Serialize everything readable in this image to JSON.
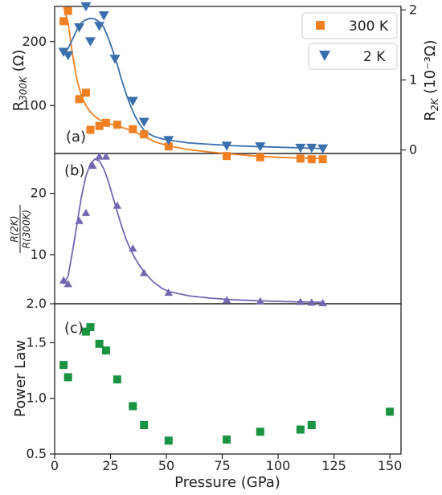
{
  "colors": {
    "orange": "#f08022",
    "blue": "#3a6fad",
    "purple": "#7367b0",
    "green": "#1a9343",
    "axis": "#222222"
  },
  "chart_data": [
    {
      "type": "scatter",
      "panel": "(a)",
      "xlim": [
        0,
        155
      ],
      "ylim_left": [
        25,
        255
      ],
      "ylim_right": [
        -0.05,
        2.05
      ],
      "yticks_left": [
        "100",
        "200"
      ],
      "yticks_right": [
        "0",
        "1",
        "2"
      ],
      "ylabel_left_main": "R",
      "ylabel_left_sub": "300K",
      "ylabel_left_unit": " (Ω)",
      "ylabel_right_main": "R",
      "ylabel_right_sub": "2K",
      "ylabel_right_unit": " (10⁻³Ω)",
      "legend_position": "top-right",
      "series": [
        {
          "name": "300 K",
          "axis": "left",
          "marker": "square",
          "x": [
            4,
            6,
            11,
            14,
            16,
            20,
            23,
            28,
            35,
            40,
            51,
            77,
            92,
            110,
            115,
            120
          ],
          "y": [
            232,
            248,
            110,
            120,
            62,
            68,
            73,
            70,
            63,
            55,
            36,
            21,
            19,
            17,
            16,
            16
          ],
          "fit_x": [
            4,
            6,
            8,
            10,
            12,
            14,
            16,
            18,
            20,
            22,
            24,
            27,
            30,
            35,
            40,
            45,
            51,
            60,
            70,
            80,
            90,
            100,
            110,
            120
          ],
          "fit_y": [
            255,
            230,
            180,
            140,
            115,
            100,
            90,
            83,
            78,
            75,
            72,
            69,
            66,
            60,
            52,
            43,
            37,
            31,
            27,
            24,
            21,
            19,
            18,
            17
          ]
        },
        {
          "name": "2 K",
          "axis": "right",
          "marker": "triangle-down",
          "x": [
            4,
            6,
            11,
            14,
            16,
            20,
            22,
            27,
            35,
            40,
            51,
            77,
            92,
            110,
            115,
            120
          ],
          "y": [
            1.4,
            1.35,
            1.75,
            2.05,
            1.55,
            1.77,
            1.92,
            1.3,
            0.7,
            0.4,
            0.14,
            0.06,
            0.05,
            0.03,
            0.03,
            0.02
          ],
          "fit_x": [
            4,
            6,
            8,
            10,
            12,
            14,
            16,
            18,
            20,
            22,
            24,
            26,
            28,
            30,
            32,
            34,
            36,
            38,
            40,
            44,
            48,
            51,
            60,
            70,
            80,
            90,
            100,
            110,
            120
          ],
          "fit_y": [
            1.4,
            1.45,
            1.58,
            1.72,
            1.82,
            1.86,
            1.88,
            1.87,
            1.83,
            1.75,
            1.6,
            1.42,
            1.22,
            1.0,
            0.8,
            0.63,
            0.48,
            0.37,
            0.28,
            0.2,
            0.16,
            0.14,
            0.1,
            0.08,
            0.06,
            0.05,
            0.04,
            0.03,
            0.02
          ]
        }
      ]
    },
    {
      "type": "scatter",
      "panel": "(b)",
      "xlim": [
        0,
        155
      ],
      "ylim": [
        2,
        26.5
      ],
      "yticks": [
        "2.0",
        "10",
        "20"
      ],
      "ylabel_num": "R(2K)",
      "ylabel_den": "R(300K)",
      "series": [
        {
          "marker": "triangle-up",
          "x": [
            4,
            6,
            11,
            14,
            17,
            20,
            23,
            28,
            35,
            40,
            51,
            77,
            92,
            110,
            115,
            120
          ],
          "y": [
            5.8,
            5.2,
            15.5,
            16.8,
            24.5,
            26,
            26,
            18,
            11,
            7,
            3.8,
            2.6,
            2.4,
            2.3,
            2.2,
            2.1
          ],
          "fit_x": [
            4,
            6,
            8,
            10,
            12,
            14,
            16,
            18,
            20,
            22,
            24,
            26,
            28,
            30,
            32,
            34,
            36,
            38,
            40,
            44,
            48,
            51,
            60,
            70,
            80,
            90,
            100,
            110,
            120
          ],
          "fit_y": [
            5.2,
            6.5,
            10.5,
            15,
            19.5,
            22.8,
            24.8,
            25.6,
            25.3,
            24,
            22,
            19.5,
            17,
            14.6,
            12.5,
            10.8,
            9.4,
            8.2,
            7.2,
            5.6,
            4.5,
            4.0,
            3.3,
            2.9,
            2.65,
            2.5,
            2.38,
            2.3,
            2.25
          ]
        }
      ]
    },
    {
      "type": "scatter",
      "panel": "(c)",
      "xlim": [
        0,
        155
      ],
      "ylim": [
        0.5,
        1.85
      ],
      "xticks": [
        "0",
        "25",
        "50",
        "75",
        "100",
        "125",
        "150"
      ],
      "yticks": [
        "0.5",
        "1.0",
        "1.5"
      ],
      "xlabel": "Pressure (GPa)",
      "ylabel": "Power Law",
      "series": [
        {
          "marker": "square",
          "x": [
            4,
            6,
            14,
            16,
            20,
            23,
            28,
            35,
            40,
            51,
            77,
            92,
            110,
            115,
            150
          ],
          "y": [
            1.3,
            1.19,
            1.6,
            1.64,
            1.49,
            1.43,
            1.17,
            0.93,
            0.76,
            0.62,
            0.63,
            0.7,
            0.72,
            0.76,
            0.88
          ]
        }
      ]
    }
  ]
}
